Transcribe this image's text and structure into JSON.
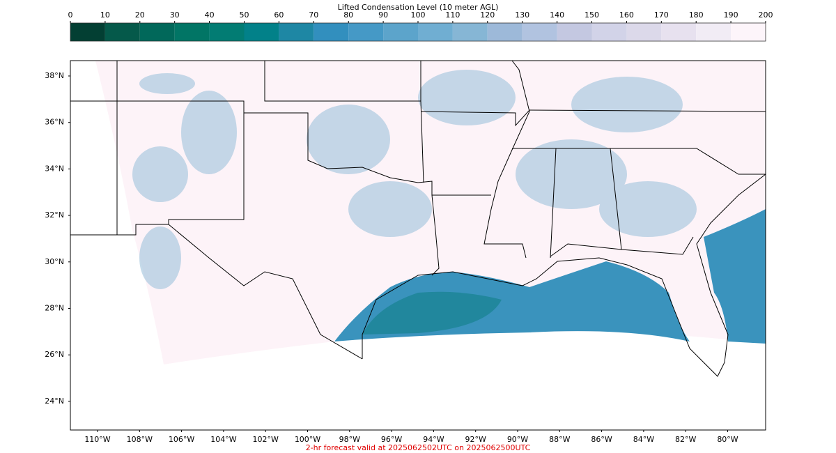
{
  "colorbar": {
    "title": "Lifted Condensation Level (10 meter AGL)",
    "ticks": [
      0,
      10,
      20,
      30,
      40,
      50,
      60,
      70,
      80,
      90,
      100,
      110,
      120,
      130,
      140,
      150,
      160,
      170,
      180,
      190,
      200
    ],
    "colors": [
      "#033f33",
      "#05594a",
      "#01685a",
      "#017565",
      "#027c73",
      "#028189",
      "#1e87a4",
      "#328fbe",
      "#4599c6",
      "#5ca4cb",
      "#70aed2",
      "#86b6d5",
      "#9db9d9",
      "#b1c3e0",
      "#c4c8e1",
      "#d2d3e8",
      "#dcd9ea",
      "#e7e1ef",
      "#f1ecf5",
      "#fdf5fa"
    ]
  },
  "map": {
    "lat_labels": [
      "38°N",
      "36°N",
      "34°N",
      "32°N",
      "30°N",
      "28°N",
      "26°N",
      "24°N"
    ],
    "lon_labels": [
      "110°W",
      "108°W",
      "106°W",
      "104°W",
      "102°W",
      "100°W",
      "98°W",
      "96°W",
      "94°W",
      "92°W",
      "90°W",
      "88°W",
      "86°W",
      "84°W",
      "82°W",
      "80°W"
    ]
  },
  "footer": "2-hr forecast valid at 2025062502UTC on 2025062500UTC"
}
